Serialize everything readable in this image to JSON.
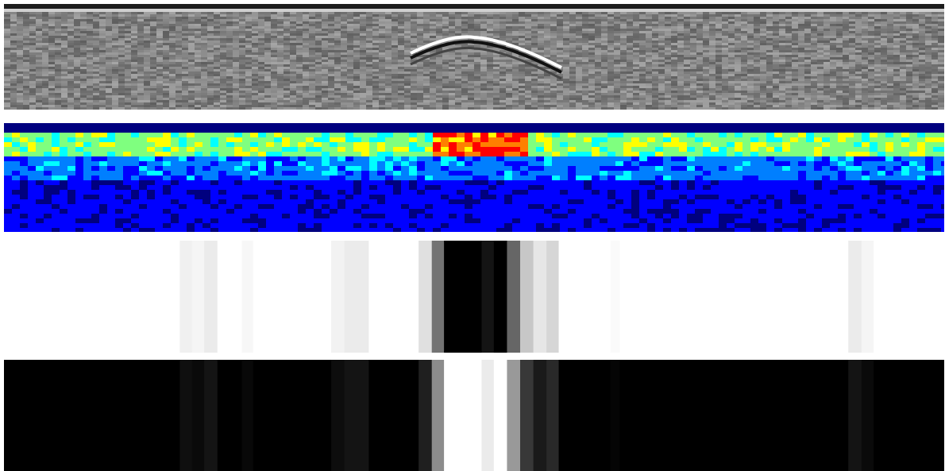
{
  "panels": [
    {
      "id": "gpr-radargram",
      "kind": "grayscale-wave"
    },
    {
      "id": "energy-heatmap",
      "kind": "jet-heatmap",
      "colormap": [
        "#00007f",
        "#0000ff",
        "#007fff",
        "#00ffff",
        "#7fff7f",
        "#ffff00",
        "#ff7f00",
        "#ff0000"
      ]
    },
    {
      "id": "detection-mask",
      "kind": "column-mask",
      "background": "#ffffff"
    },
    {
      "id": "detection-mask-inverted",
      "kind": "column-mask",
      "background": "#000000"
    }
  ],
  "mask_columns": [
    {
      "x0": 0.0,
      "x1": 0.187,
      "v": 0.0
    },
    {
      "x0": 0.187,
      "x1": 0.2,
      "v": 0.06
    },
    {
      "x0": 0.2,
      "x1": 0.213,
      "v": 0.04
    },
    {
      "x0": 0.213,
      "x1": 0.227,
      "v": 0.08
    },
    {
      "x0": 0.227,
      "x1": 0.253,
      "v": 0.0
    },
    {
      "x0": 0.253,
      "x1": 0.265,
      "v": 0.03
    },
    {
      "x0": 0.265,
      "x1": 0.348,
      "v": 0.0
    },
    {
      "x0": 0.348,
      "x1": 0.362,
      "v": 0.05
    },
    {
      "x0": 0.362,
      "x1": 0.388,
      "v": 0.08
    },
    {
      "x0": 0.388,
      "x1": 0.441,
      "v": 0.0
    },
    {
      "x0": 0.441,
      "x1": 0.455,
      "v": 0.12
    },
    {
      "x0": 0.455,
      "x1": 0.468,
      "v": 0.55
    },
    {
      "x0": 0.468,
      "x1": 0.508,
      "v": 1.0
    },
    {
      "x0": 0.508,
      "x1": 0.521,
      "v": 0.92
    },
    {
      "x0": 0.521,
      "x1": 0.535,
      "v": 1.0
    },
    {
      "x0": 0.535,
      "x1": 0.549,
      "v": 0.6
    },
    {
      "x0": 0.549,
      "x1": 0.563,
      "v": 0.22
    },
    {
      "x0": 0.563,
      "x1": 0.577,
      "v": 0.1
    },
    {
      "x0": 0.577,
      "x1": 0.59,
      "v": 0.16
    },
    {
      "x0": 0.59,
      "x1": 0.645,
      "v": 0.0
    },
    {
      "x0": 0.645,
      "x1": 0.655,
      "v": 0.02
    },
    {
      "x0": 0.655,
      "x1": 0.898,
      "v": 0.0
    },
    {
      "x0": 0.898,
      "x1": 0.912,
      "v": 0.08
    },
    {
      "x0": 0.912,
      "x1": 0.925,
      "v": 0.04
    },
    {
      "x0": 0.925,
      "x1": 1.0,
      "v": 0.0
    }
  ],
  "target": {
    "center": 0.5,
    "width": 0.07,
    "depth": 0.38
  }
}
